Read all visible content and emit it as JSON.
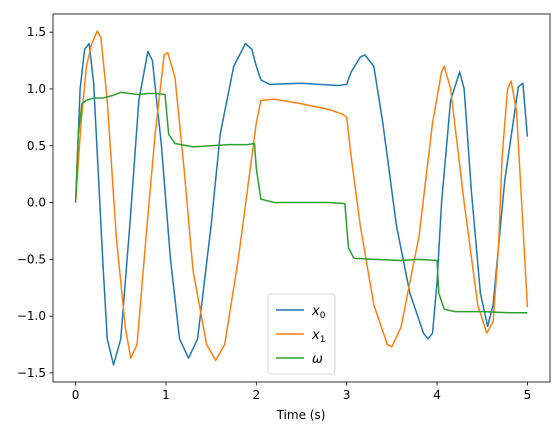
{
  "chart_data": {
    "type": "line",
    "title": "",
    "xlabel": "Time (s)",
    "ylabel": "",
    "xlim": [
      -0.25,
      5.25
    ],
    "ylim": [
      -1.58,
      1.66
    ],
    "xticks": [
      0,
      1,
      2,
      3,
      4,
      5
    ],
    "xtick_labels": [
      "0",
      "1",
      "2",
      "3",
      "4",
      "5"
    ],
    "yticks": [
      -1.5,
      -1.0,
      -0.5,
      0.0,
      0.5,
      1.0,
      1.5
    ],
    "ytick_labels": [
      "−1.5",
      "−1.0",
      "−0.5",
      "0.0",
      "0.5",
      "1.0",
      "1.5"
    ],
    "grid": false,
    "legend_position": "lower-center",
    "series": [
      {
        "name": "x0",
        "label_base": "x",
        "label_sub": "0",
        "color": "#1f77b4",
        "points": [
          [
            0,
            0
          ],
          [
            0.05,
            1.0
          ],
          [
            0.1,
            1.35
          ],
          [
            0.15,
            1.4
          ],
          [
            0.2,
            1.05
          ],
          [
            0.3,
            -0.5
          ],
          [
            0.35,
            -1.2
          ],
          [
            0.42,
            -1.43
          ],
          [
            0.5,
            -1.2
          ],
          [
            0.6,
            -0.2
          ],
          [
            0.7,
            0.9
          ],
          [
            0.8,
            1.33
          ],
          [
            0.85,
            1.25
          ],
          [
            0.95,
            0.5
          ],
          [
            1.05,
            -0.5
          ],
          [
            1.15,
            -1.2
          ],
          [
            1.25,
            -1.37
          ],
          [
            1.35,
            -1.2
          ],
          [
            1.5,
            -0.2
          ],
          [
            1.6,
            0.6
          ],
          [
            1.75,
            1.2
          ],
          [
            1.88,
            1.4
          ],
          [
            1.95,
            1.35
          ],
          [
            2.0,
            1.2
          ],
          [
            2.05,
            1.08
          ],
          [
            2.15,
            1.04
          ],
          [
            2.5,
            1.05
          ],
          [
            2.9,
            1.03
          ],
          [
            3.0,
            1.04
          ],
          [
            3.05,
            1.15
          ],
          [
            3.15,
            1.28
          ],
          [
            3.2,
            1.3
          ],
          [
            3.3,
            1.2
          ],
          [
            3.4,
            0.7
          ],
          [
            3.55,
            -0.2
          ],
          [
            3.7,
            -0.8
          ],
          [
            3.85,
            -1.15
          ],
          [
            3.9,
            -1.2
          ],
          [
            3.95,
            -1.15
          ],
          [
            4.0,
            -0.7
          ],
          [
            4.05,
            0.0
          ],
          [
            4.15,
            0.9
          ],
          [
            4.25,
            1.15
          ],
          [
            4.3,
            1.0
          ],
          [
            4.38,
            0.1
          ],
          [
            4.48,
            -0.8
          ],
          [
            4.56,
            -1.09
          ],
          [
            4.62,
            -0.9
          ],
          [
            4.75,
            0.2
          ],
          [
            4.9,
            1.02
          ],
          [
            4.95,
            1.05
          ],
          [
            5.0,
            0.58
          ]
        ]
      },
      {
        "name": "x1",
        "label_base": "x",
        "label_sub": "1",
        "color": "#ff7f0e",
        "points": [
          [
            0,
            0
          ],
          [
            0.06,
            0.7
          ],
          [
            0.12,
            1.2
          ],
          [
            0.18,
            1.4
          ],
          [
            0.24,
            1.51
          ],
          [
            0.28,
            1.45
          ],
          [
            0.35,
            0.9
          ],
          [
            0.45,
            -0.3
          ],
          [
            0.55,
            -1.1
          ],
          [
            0.61,
            -1.37
          ],
          [
            0.68,
            -1.25
          ],
          [
            0.78,
            -0.3
          ],
          [
            0.88,
            0.6
          ],
          [
            0.98,
            1.3
          ],
          [
            1.02,
            1.32
          ],
          [
            1.1,
            1.1
          ],
          [
            1.2,
            0.3
          ],
          [
            1.3,
            -0.6
          ],
          [
            1.45,
            -1.25
          ],
          [
            1.55,
            -1.39
          ],
          [
            1.65,
            -1.25
          ],
          [
            1.8,
            -0.5
          ],
          [
            1.9,
            0.1
          ],
          [
            2.0,
            0.7
          ],
          [
            2.05,
            0.9
          ],
          [
            2.2,
            0.91
          ],
          [
            2.5,
            0.87
          ],
          [
            2.8,
            0.82
          ],
          [
            2.95,
            0.78
          ],
          [
            3.0,
            0.75
          ],
          [
            3.05,
            0.4
          ],
          [
            3.15,
            -0.2
          ],
          [
            3.3,
            -0.9
          ],
          [
            3.45,
            -1.25
          ],
          [
            3.5,
            -1.27
          ],
          [
            3.6,
            -1.1
          ],
          [
            3.8,
            -0.3
          ],
          [
            3.95,
            0.7
          ],
          [
            4.05,
            1.15
          ],
          [
            4.08,
            1.2
          ],
          [
            4.15,
            1.0
          ],
          [
            4.3,
            0.0
          ],
          [
            4.45,
            -0.9
          ],
          [
            4.55,
            -1.15
          ],
          [
            4.62,
            -1.05
          ],
          [
            4.68,
            -0.4
          ],
          [
            4.72,
            0.4
          ],
          [
            4.78,
            1.0
          ],
          [
            4.82,
            1.07
          ],
          [
            4.88,
            0.8
          ],
          [
            4.95,
            -0.2
          ],
          [
            5.0,
            -0.92
          ]
        ]
      },
      {
        "name": "ω",
        "label_base": "ω",
        "label_sub": "",
        "color": "#2ca02c",
        "points": [
          [
            0,
            0
          ],
          [
            0.03,
            0.6
          ],
          [
            0.07,
            0.87
          ],
          [
            0.12,
            0.9
          ],
          [
            0.2,
            0.92
          ],
          [
            0.3,
            0.92
          ],
          [
            0.4,
            0.94
          ],
          [
            0.5,
            0.97
          ],
          [
            0.6,
            0.96
          ],
          [
            0.7,
            0.95
          ],
          [
            0.8,
            0.96
          ],
          [
            0.9,
            0.96
          ],
          [
            0.99,
            0.95
          ],
          [
            1.03,
            0.6
          ],
          [
            1.1,
            0.52
          ],
          [
            1.3,
            0.49
          ],
          [
            1.5,
            0.5
          ],
          [
            1.7,
            0.51
          ],
          [
            1.9,
            0.51
          ],
          [
            1.98,
            0.52
          ],
          [
            2.0,
            0.3
          ],
          [
            2.05,
            0.03
          ],
          [
            2.2,
            0.0
          ],
          [
            2.5,
            0.0
          ],
          [
            2.8,
            0.0
          ],
          [
            2.98,
            -0.01
          ],
          [
            3.02,
            -0.4
          ],
          [
            3.08,
            -0.49
          ],
          [
            3.3,
            -0.5
          ],
          [
            3.6,
            -0.51
          ],
          [
            3.8,
            -0.5
          ],
          [
            4.0,
            -0.51
          ],
          [
            4.02,
            -0.8
          ],
          [
            4.08,
            -0.94
          ],
          [
            4.2,
            -0.96
          ],
          [
            4.5,
            -0.96
          ],
          [
            4.8,
            -0.97
          ],
          [
            5.0,
            -0.97
          ]
        ]
      }
    ]
  }
}
